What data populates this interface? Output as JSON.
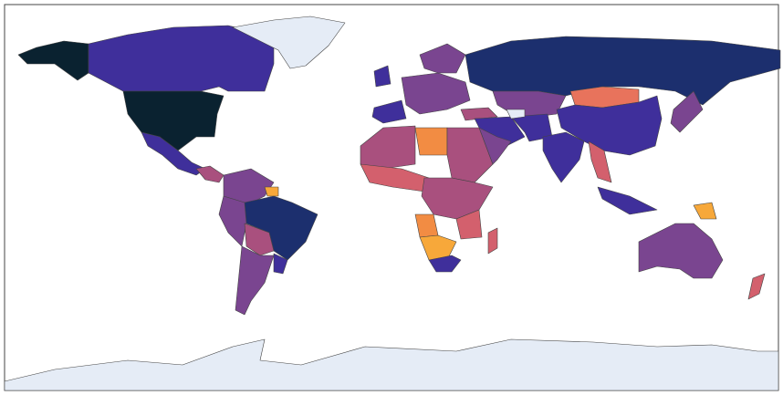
{
  "map": {
    "type": "choropleth",
    "ocean": "#ffffff",
    "frame": "#444444",
    "no_data": "#e5ecf6",
    "colors": [
      "#0a2230",
      "#1c2f6e",
      "#3f2f9b",
      "#7a4590",
      "#a9507e",
      "#d3606d",
      "#e8735c",
      "#f28c43",
      "#f7a83a"
    ]
  }
}
